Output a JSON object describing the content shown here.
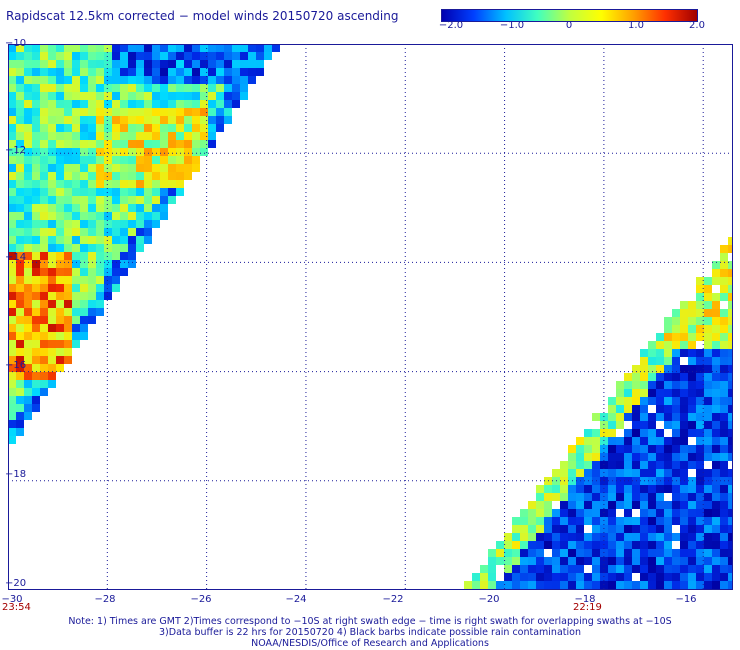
{
  "title": "Rapidscat 12.5km corrected − model winds 20150720 ascending",
  "colorbar": {
    "ticks": [
      "−2.0",
      "−1.0",
      "0",
      "1.0",
      "2.0"
    ],
    "colors": [
      "#0000b0",
      "#0040ff",
      "#00c0ff",
      "#40ffc0",
      "#c0ff40",
      "#ffff00",
      "#ffa000",
      "#ff3000",
      "#a00000"
    ]
  },
  "map": {
    "lat_labels": [
      "−10",
      "−12",
      "−14",
      "−16",
      "−18",
      "−20"
    ],
    "lon_labels": [
      "−30",
      "−28",
      "−26",
      "−24",
      "−22",
      "−20",
      "−18",
      "−16"
    ],
    "lon_range": [
      -30,
      -15.4
    ],
    "lat_range": [
      -10,
      -20
    ],
    "swath_times": [
      "23:54",
      "22:19"
    ],
    "grid": "dotted"
  },
  "notes": {
    "line1": "Note: 1) Times are GMT 2)Times correspond to −10S at right swath edge − time is right swath for overlapping swaths at −10S",
    "line2": "3)Data buffer is 22 hrs for 20150720 4) Black barbs indicate possible rain contamination",
    "line3": "NOAA/NESDIS/Office of Research and Applications"
  }
}
